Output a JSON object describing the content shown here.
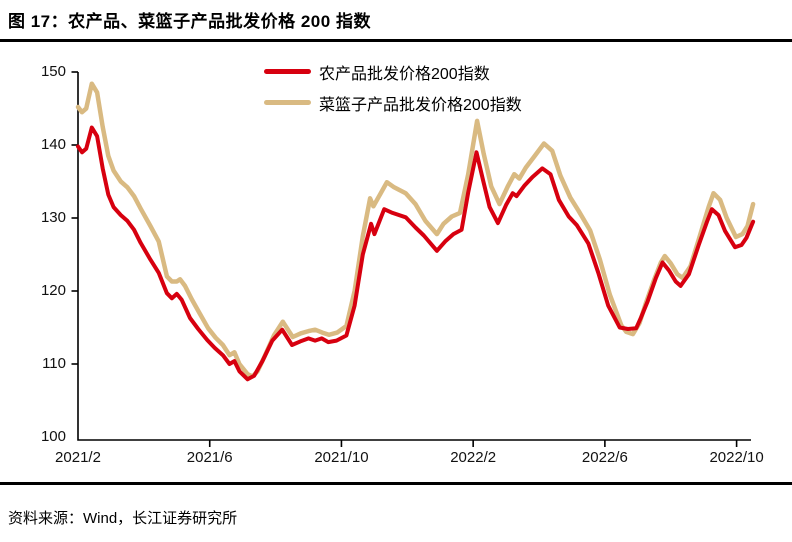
{
  "figure": {
    "title": "图 17：农产品、菜篮子产品批发价格 200 指数",
    "source": "资料来源：Wind，长江证券研究所"
  },
  "chart_data": {
    "type": "line",
    "title": "农产品、菜篮子产品批发价格 200 指数",
    "grid": false,
    "legend_position": "top-center",
    "x_axis": {
      "unit": "month",
      "ticks": [
        "2021/2",
        "2021/6",
        "2021/10",
        "2022/2",
        "2022/6",
        "2022/10"
      ],
      "months_per_tick": 4,
      "t_range": [
        0,
        20.5
      ]
    },
    "y_axis": {
      "ticks": [
        100,
        110,
        120,
        130,
        140,
        150
      ],
      "range": [
        100,
        150
      ]
    },
    "series": [
      {
        "name": "农产品批发价格200指数",
        "color": "#d7000f",
        "stroke_width": 4,
        "points": [
          [
            0,
            139.8
          ],
          [
            0.12,
            139
          ],
          [
            0.25,
            139.5
          ],
          [
            0.42,
            142.4
          ],
          [
            0.58,
            141.2
          ],
          [
            0.75,
            136.8
          ],
          [
            0.92,
            133.2
          ],
          [
            1.08,
            131.5
          ],
          [
            1.3,
            130.4
          ],
          [
            1.5,
            129.6
          ],
          [
            1.7,
            128.4
          ],
          [
            1.9,
            126.6
          ],
          [
            2.2,
            124.3
          ],
          [
            2.45,
            122.5
          ],
          [
            2.7,
            119.7
          ],
          [
            2.85,
            119
          ],
          [
            3,
            119.6
          ],
          [
            3.15,
            118.8
          ],
          [
            3.4,
            116.3
          ],
          [
            3.65,
            114.8
          ],
          [
            3.92,
            113.3
          ],
          [
            4.15,
            112.2
          ],
          [
            4.4,
            111.2
          ],
          [
            4.6,
            110
          ],
          [
            4.75,
            110.4
          ],
          [
            4.9,
            109
          ],
          [
            5.15,
            107.9
          ],
          [
            5.35,
            108.4
          ],
          [
            5.6,
            110.4
          ],
          [
            5.9,
            113.2
          ],
          [
            6.2,
            114.7
          ],
          [
            6.5,
            112.6
          ],
          [
            6.75,
            113.1
          ],
          [
            7,
            113.5
          ],
          [
            7.2,
            113.2
          ],
          [
            7.4,
            113.5
          ],
          [
            7.6,
            113
          ],
          [
            7.85,
            113.2
          ],
          [
            8.15,
            113.9
          ],
          [
            8.4,
            118
          ],
          [
            8.65,
            125
          ],
          [
            8.9,
            129.2
          ],
          [
            9,
            127.8
          ],
          [
            9.3,
            131.2
          ],
          [
            9.55,
            130.7
          ],
          [
            9.95,
            130.1
          ],
          [
            10.25,
            128.7
          ],
          [
            10.5,
            127.6
          ],
          [
            10.9,
            125.5
          ],
          [
            11.15,
            126.8
          ],
          [
            11.4,
            127.8
          ],
          [
            11.65,
            128.4
          ],
          [
            11.85,
            133.5
          ],
          [
            12.1,
            139
          ],
          [
            12.3,
            135.2
          ],
          [
            12.5,
            131.5
          ],
          [
            12.75,
            129.3
          ],
          [
            13,
            131.8
          ],
          [
            13.2,
            133.4
          ],
          [
            13.32,
            133
          ],
          [
            13.55,
            134.4
          ],
          [
            13.8,
            135.6
          ],
          [
            14.1,
            136.8
          ],
          [
            14.35,
            136
          ],
          [
            14.6,
            132.5
          ],
          [
            14.9,
            130.2
          ],
          [
            15.15,
            129
          ],
          [
            15.5,
            126.5
          ],
          [
            15.8,
            122.5
          ],
          [
            16.1,
            118
          ],
          [
            16.45,
            115
          ],
          [
            16.7,
            114.8
          ],
          [
            16.95,
            114.9
          ],
          [
            17.1,
            116.4
          ],
          [
            17.3,
            118.6
          ],
          [
            17.55,
            121.8
          ],
          [
            17.75,
            123.9
          ],
          [
            17.95,
            122.8
          ],
          [
            18.15,
            121.3
          ],
          [
            18.3,
            120.7
          ],
          [
            18.55,
            122.3
          ],
          [
            18.85,
            126.3
          ],
          [
            19.1,
            129.5
          ],
          [
            19.25,
            131.2
          ],
          [
            19.45,
            130.4
          ],
          [
            19.65,
            128.2
          ],
          [
            19.95,
            126
          ],
          [
            20.15,
            126.3
          ],
          [
            20.3,
            127.3
          ],
          [
            20.5,
            129.5
          ]
        ]
      },
      {
        "name": "菜篮子产品批发价格200指数",
        "color": "#d9ba82",
        "stroke_width": 4.5,
        "points": [
          [
            0,
            145.2
          ],
          [
            0.12,
            144.5
          ],
          [
            0.25,
            145
          ],
          [
            0.42,
            148.4
          ],
          [
            0.58,
            147.2
          ],
          [
            0.75,
            142.5
          ],
          [
            0.92,
            138.5
          ],
          [
            1.08,
            136.5
          ],
          [
            1.3,
            135
          ],
          [
            1.5,
            134.2
          ],
          [
            1.7,
            133
          ],
          [
            1.9,
            131.3
          ],
          [
            2.2,
            128.9
          ],
          [
            2.45,
            126.8
          ],
          [
            2.7,
            122
          ],
          [
            2.85,
            121.3
          ],
          [
            3,
            121.3
          ],
          [
            3.1,
            121.6
          ],
          [
            3.25,
            120.7
          ],
          [
            3.45,
            118.9
          ],
          [
            3.7,
            116.9
          ],
          [
            3.95,
            114.9
          ],
          [
            4.18,
            113.6
          ],
          [
            4.4,
            112.6
          ],
          [
            4.6,
            111.2
          ],
          [
            4.75,
            111.6
          ],
          [
            4.9,
            110
          ],
          [
            5.15,
            108.6
          ],
          [
            5.3,
            108.3
          ],
          [
            5.45,
            109
          ],
          [
            5.65,
            110.9
          ],
          [
            5.95,
            113.9
          ],
          [
            6.22,
            115.8
          ],
          [
            6.52,
            113.7
          ],
          [
            6.77,
            114.2
          ],
          [
            7,
            114.5
          ],
          [
            7.2,
            114.7
          ],
          [
            7.42,
            114.3
          ],
          [
            7.62,
            114
          ],
          [
            7.87,
            114.3
          ],
          [
            8.15,
            115.2
          ],
          [
            8.4,
            120
          ],
          [
            8.65,
            127.5
          ],
          [
            8.87,
            132.7
          ],
          [
            8.97,
            131.6
          ],
          [
            9.38,
            134.9
          ],
          [
            9.6,
            134.2
          ],
          [
            9.95,
            133.4
          ],
          [
            10.25,
            131.9
          ],
          [
            10.55,
            129.6
          ],
          [
            10.9,
            127.8
          ],
          [
            11.1,
            129.2
          ],
          [
            11.35,
            130.2
          ],
          [
            11.6,
            130.7
          ],
          [
            11.85,
            136
          ],
          [
            12.12,
            143.3
          ],
          [
            12.32,
            138.8
          ],
          [
            12.55,
            134.3
          ],
          [
            12.8,
            131.9
          ],
          [
            13.05,
            134.3
          ],
          [
            13.25,
            136
          ],
          [
            13.4,
            135.4
          ],
          [
            13.6,
            136.9
          ],
          [
            13.85,
            138.4
          ],
          [
            14.15,
            140.2
          ],
          [
            14.4,
            139.2
          ],
          [
            14.65,
            135.8
          ],
          [
            14.95,
            132.8
          ],
          [
            15.2,
            131
          ],
          [
            15.55,
            128.3
          ],
          [
            15.85,
            124.3
          ],
          [
            16.15,
            119.5
          ],
          [
            16.5,
            115.3
          ],
          [
            16.65,
            114.4
          ],
          [
            16.85,
            114.1
          ],
          [
            17.05,
            115.6
          ],
          [
            17.25,
            118.4
          ],
          [
            17.5,
            121.6
          ],
          [
            17.7,
            123.9
          ],
          [
            17.82,
            124.8
          ],
          [
            18,
            123.8
          ],
          [
            18.2,
            122.3
          ],
          [
            18.36,
            121.8
          ],
          [
            18.6,
            123.4
          ],
          [
            18.9,
            127.8
          ],
          [
            19.15,
            131.5
          ],
          [
            19.3,
            133.4
          ],
          [
            19.5,
            132.5
          ],
          [
            19.7,
            130
          ],
          [
            19.98,
            127.4
          ],
          [
            20.18,
            127.8
          ],
          [
            20.33,
            128.9
          ],
          [
            20.5,
            131.9
          ]
        ]
      }
    ]
  }
}
